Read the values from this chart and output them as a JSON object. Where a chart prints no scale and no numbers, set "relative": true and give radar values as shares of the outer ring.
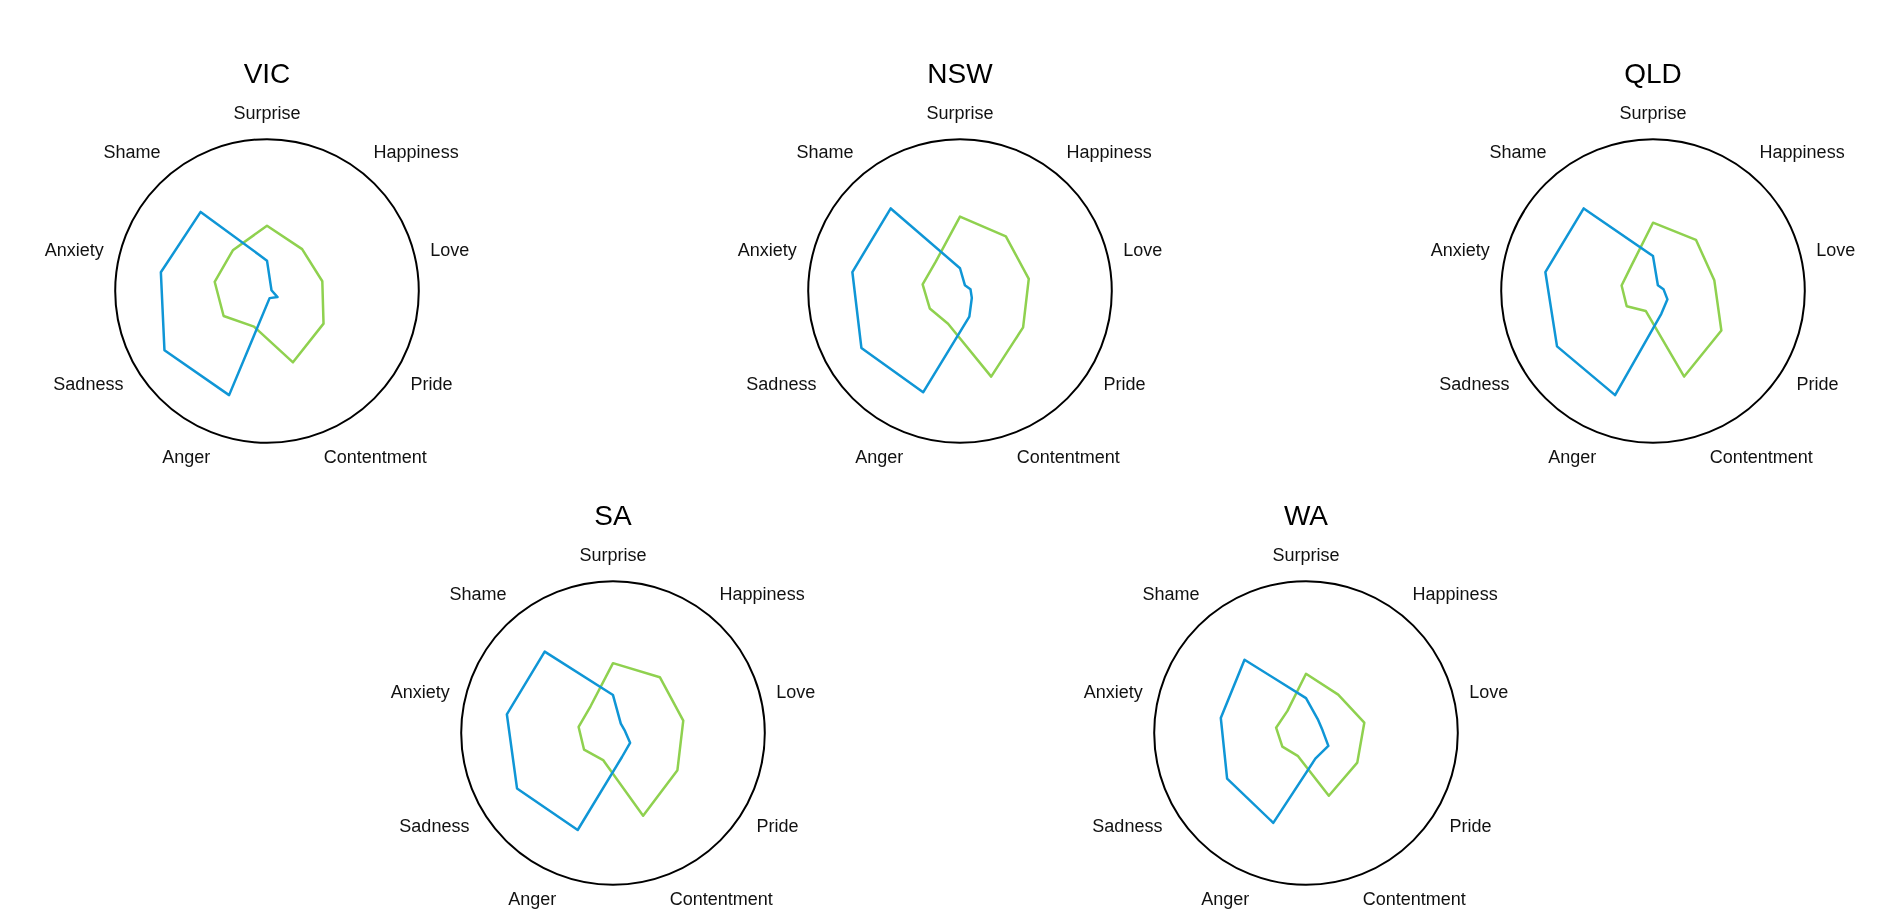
{
  "chart_data": [
    {
      "type": "radar",
      "title": "VIC",
      "relative": true,
      "categories": [
        "Surprise",
        "Happiness",
        "Love",
        "Pride",
        "Contentment",
        "Anger",
        "Sadness",
        "Anxiety",
        "Shame"
      ],
      "series": [
        {
          "color": "#0f96d6",
          "values": [
            0.2,
            0.04,
            0.03,
            0.08,
            0.05,
            0.73,
            0.78,
            0.71,
            0.68
          ]
        },
        {
          "color": "#8fd14f",
          "values": [
            0.43,
            0.36,
            0.37,
            0.43,
            0.5,
            0.25,
            0.33,
            0.35,
            0.35
          ]
        }
      ]
    },
    {
      "type": "radar",
      "title": "NSW",
      "relative": true,
      "categories": [
        "Surprise",
        "Happiness",
        "Love",
        "Pride",
        "Contentment",
        "Anger",
        "Sadness",
        "Anxiety",
        "Shame"
      ],
      "series": [
        {
          "color": "#0f96d6",
          "values": [
            0.15,
            0.05,
            0.07,
            0.09,
            0.18,
            0.71,
            0.75,
            0.72,
            0.71
          ]
        },
        {
          "color": "#8fd14f",
          "values": [
            0.49,
            0.47,
            0.46,
            0.48,
            0.6,
            0.23,
            0.23,
            0.25,
            0.25
          ]
        }
      ]
    },
    {
      "type": "radar",
      "title": "QLD",
      "relative": true,
      "categories": [
        "Surprise",
        "Happiness",
        "Love",
        "Pride",
        "Contentment",
        "Anger",
        "Sadness",
        "Anxiety",
        "Shame"
      ],
      "series": [
        {
          "color": "#0f96d6",
          "values": [
            0.23,
            0.05,
            0.07,
            0.11,
            0.16,
            0.73,
            0.73,
            0.72,
            0.71
          ]
        },
        {
          "color": "#8fd14f",
          "values": [
            0.45,
            0.44,
            0.41,
            0.52,
            0.6,
            0.14,
            0.2,
            0.21,
            0.22
          ]
        }
      ]
    },
    {
      "type": "radar",
      "title": "SA",
      "relative": true,
      "categories": [
        "Surprise",
        "Happiness",
        "Love",
        "Pride",
        "Contentment",
        "Anger",
        "Sadness",
        "Anxiety",
        "Shame"
      ],
      "series": [
        {
          "color": "#0f96d6",
          "values": [
            0.25,
            0.08,
            0.08,
            0.13,
            0.17,
            0.68,
            0.73,
            0.71,
            0.7
          ]
        },
        {
          "color": "#8fd14f",
          "values": [
            0.46,
            0.48,
            0.47,
            0.49,
            0.58,
            0.19,
            0.22,
            0.23,
            0.23
          ]
        }
      ]
    },
    {
      "type": "radar",
      "title": "WA",
      "relative": true,
      "categories": [
        "Surprise",
        "Happiness",
        "Love",
        "Pride",
        "Contentment",
        "Anger",
        "Sadness",
        "Anxiety",
        "Shame"
      ],
      "series": [
        {
          "color": "#0f96d6",
          "values": [
            0.23,
            0.12,
            0.11,
            0.17,
            0.18,
            0.63,
            0.6,
            0.57,
            0.63
          ]
        },
        {
          "color": "#8fd14f",
          "values": [
            0.39,
            0.33,
            0.39,
            0.39,
            0.44,
            0.16,
            0.18,
            0.2,
            0.19
          ]
        }
      ]
    }
  ]
}
